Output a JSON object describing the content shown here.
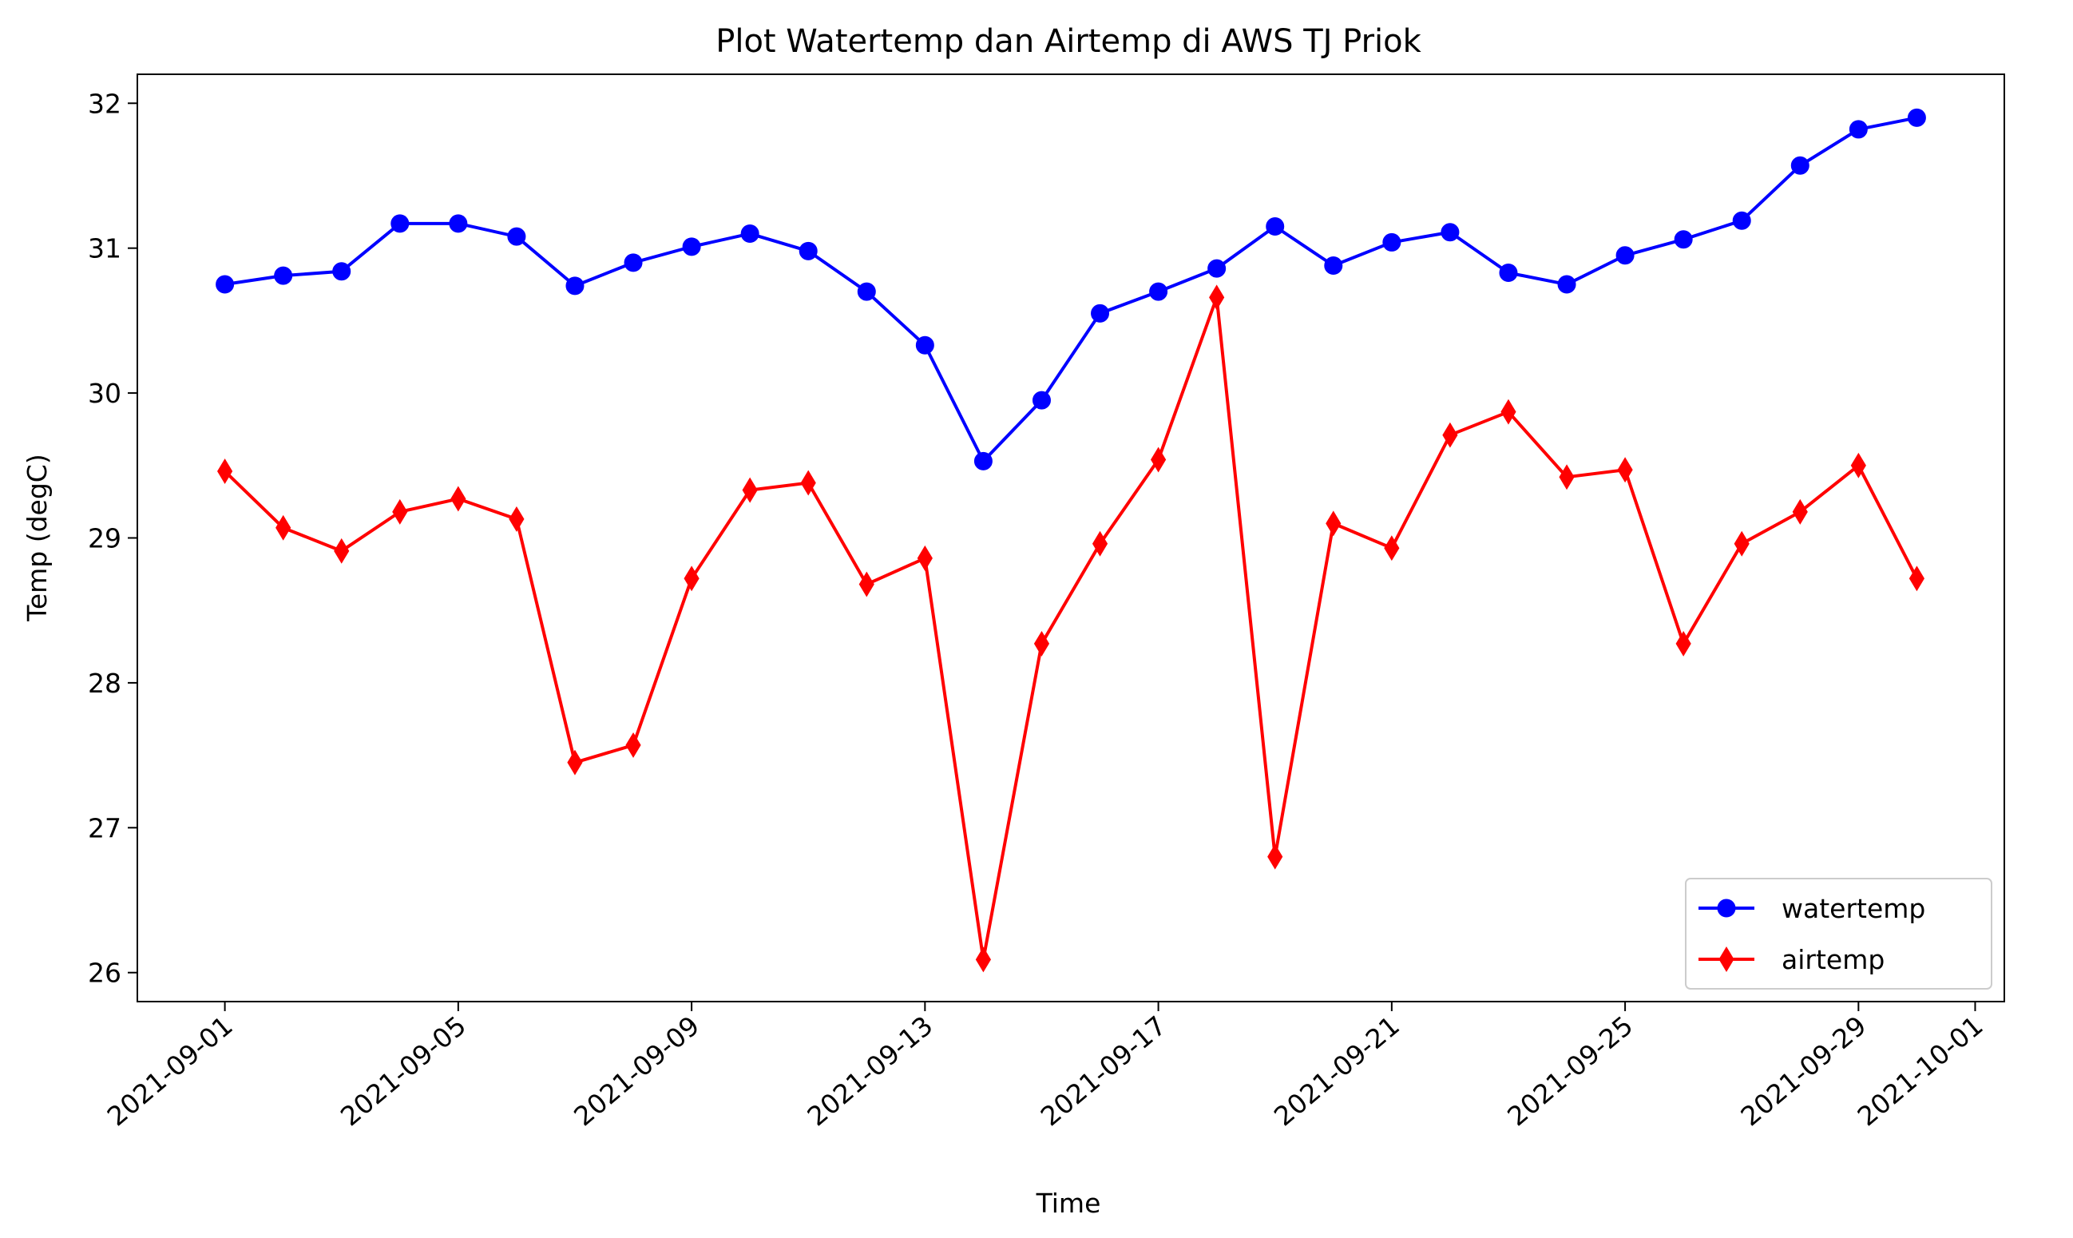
{
  "chart_data": {
    "type": "line",
    "title": "Plot Watertemp dan Airtemp di AWS TJ Priok",
    "xlabel": "Time",
    "ylabel": "Temp (degC)",
    "x": [
      "2021-09-01",
      "2021-09-02",
      "2021-09-03",
      "2021-09-04",
      "2021-09-05",
      "2021-09-06",
      "2021-09-07",
      "2021-09-08",
      "2021-09-09",
      "2021-09-10",
      "2021-09-11",
      "2021-09-12",
      "2021-09-13",
      "2021-09-14",
      "2021-09-15",
      "2021-09-16",
      "2021-09-17",
      "2021-09-18",
      "2021-09-19",
      "2021-09-20",
      "2021-09-21",
      "2021-09-22",
      "2021-09-23",
      "2021-09-24",
      "2021-09-25",
      "2021-09-26",
      "2021-09-27",
      "2021-09-28",
      "2021-09-29",
      "2021-09-30"
    ],
    "series": [
      {
        "name": "watertemp",
        "color": "#0000ff",
        "marker": "circle",
        "values": [
          30.75,
          30.81,
          30.84,
          31.17,
          31.17,
          31.08,
          30.74,
          30.9,
          31.01,
          31.1,
          30.98,
          30.7,
          30.33,
          29.53,
          29.95,
          30.55,
          30.7,
          30.86,
          31.15,
          30.88,
          31.04,
          31.11,
          30.83,
          30.75,
          30.95,
          31.06,
          31.19,
          31.57,
          31.82,
          31.9
        ]
      },
      {
        "name": "airtemp",
        "color": "#ff0000",
        "marker": "thin_diamond",
        "values": [
          29.46,
          29.07,
          28.91,
          29.18,
          29.27,
          29.13,
          27.45,
          27.57,
          28.72,
          29.33,
          29.38,
          28.68,
          28.86,
          26.09,
          28.27,
          28.96,
          29.54,
          30.66,
          26.8,
          29.1,
          28.93,
          29.71,
          29.87,
          29.42,
          29.47,
          28.27,
          28.96,
          29.18,
          29.5,
          28.72
        ]
      }
    ],
    "ylim": [
      25.8,
      32.2
    ],
    "xlim": [
      "2021-08-30T12:00",
      "2021-10-01T12:00"
    ],
    "yticks": [
      26,
      27,
      28,
      29,
      30,
      31,
      32
    ],
    "xticks": [
      "2021-09-01",
      "2021-09-05",
      "2021-09-09",
      "2021-09-13",
      "2021-09-17",
      "2021-09-21",
      "2021-09-25",
      "2021-09-29",
      "2021-10-01"
    ],
    "xtick_rotation": 40,
    "grid": false,
    "legend": "lower-right"
  }
}
